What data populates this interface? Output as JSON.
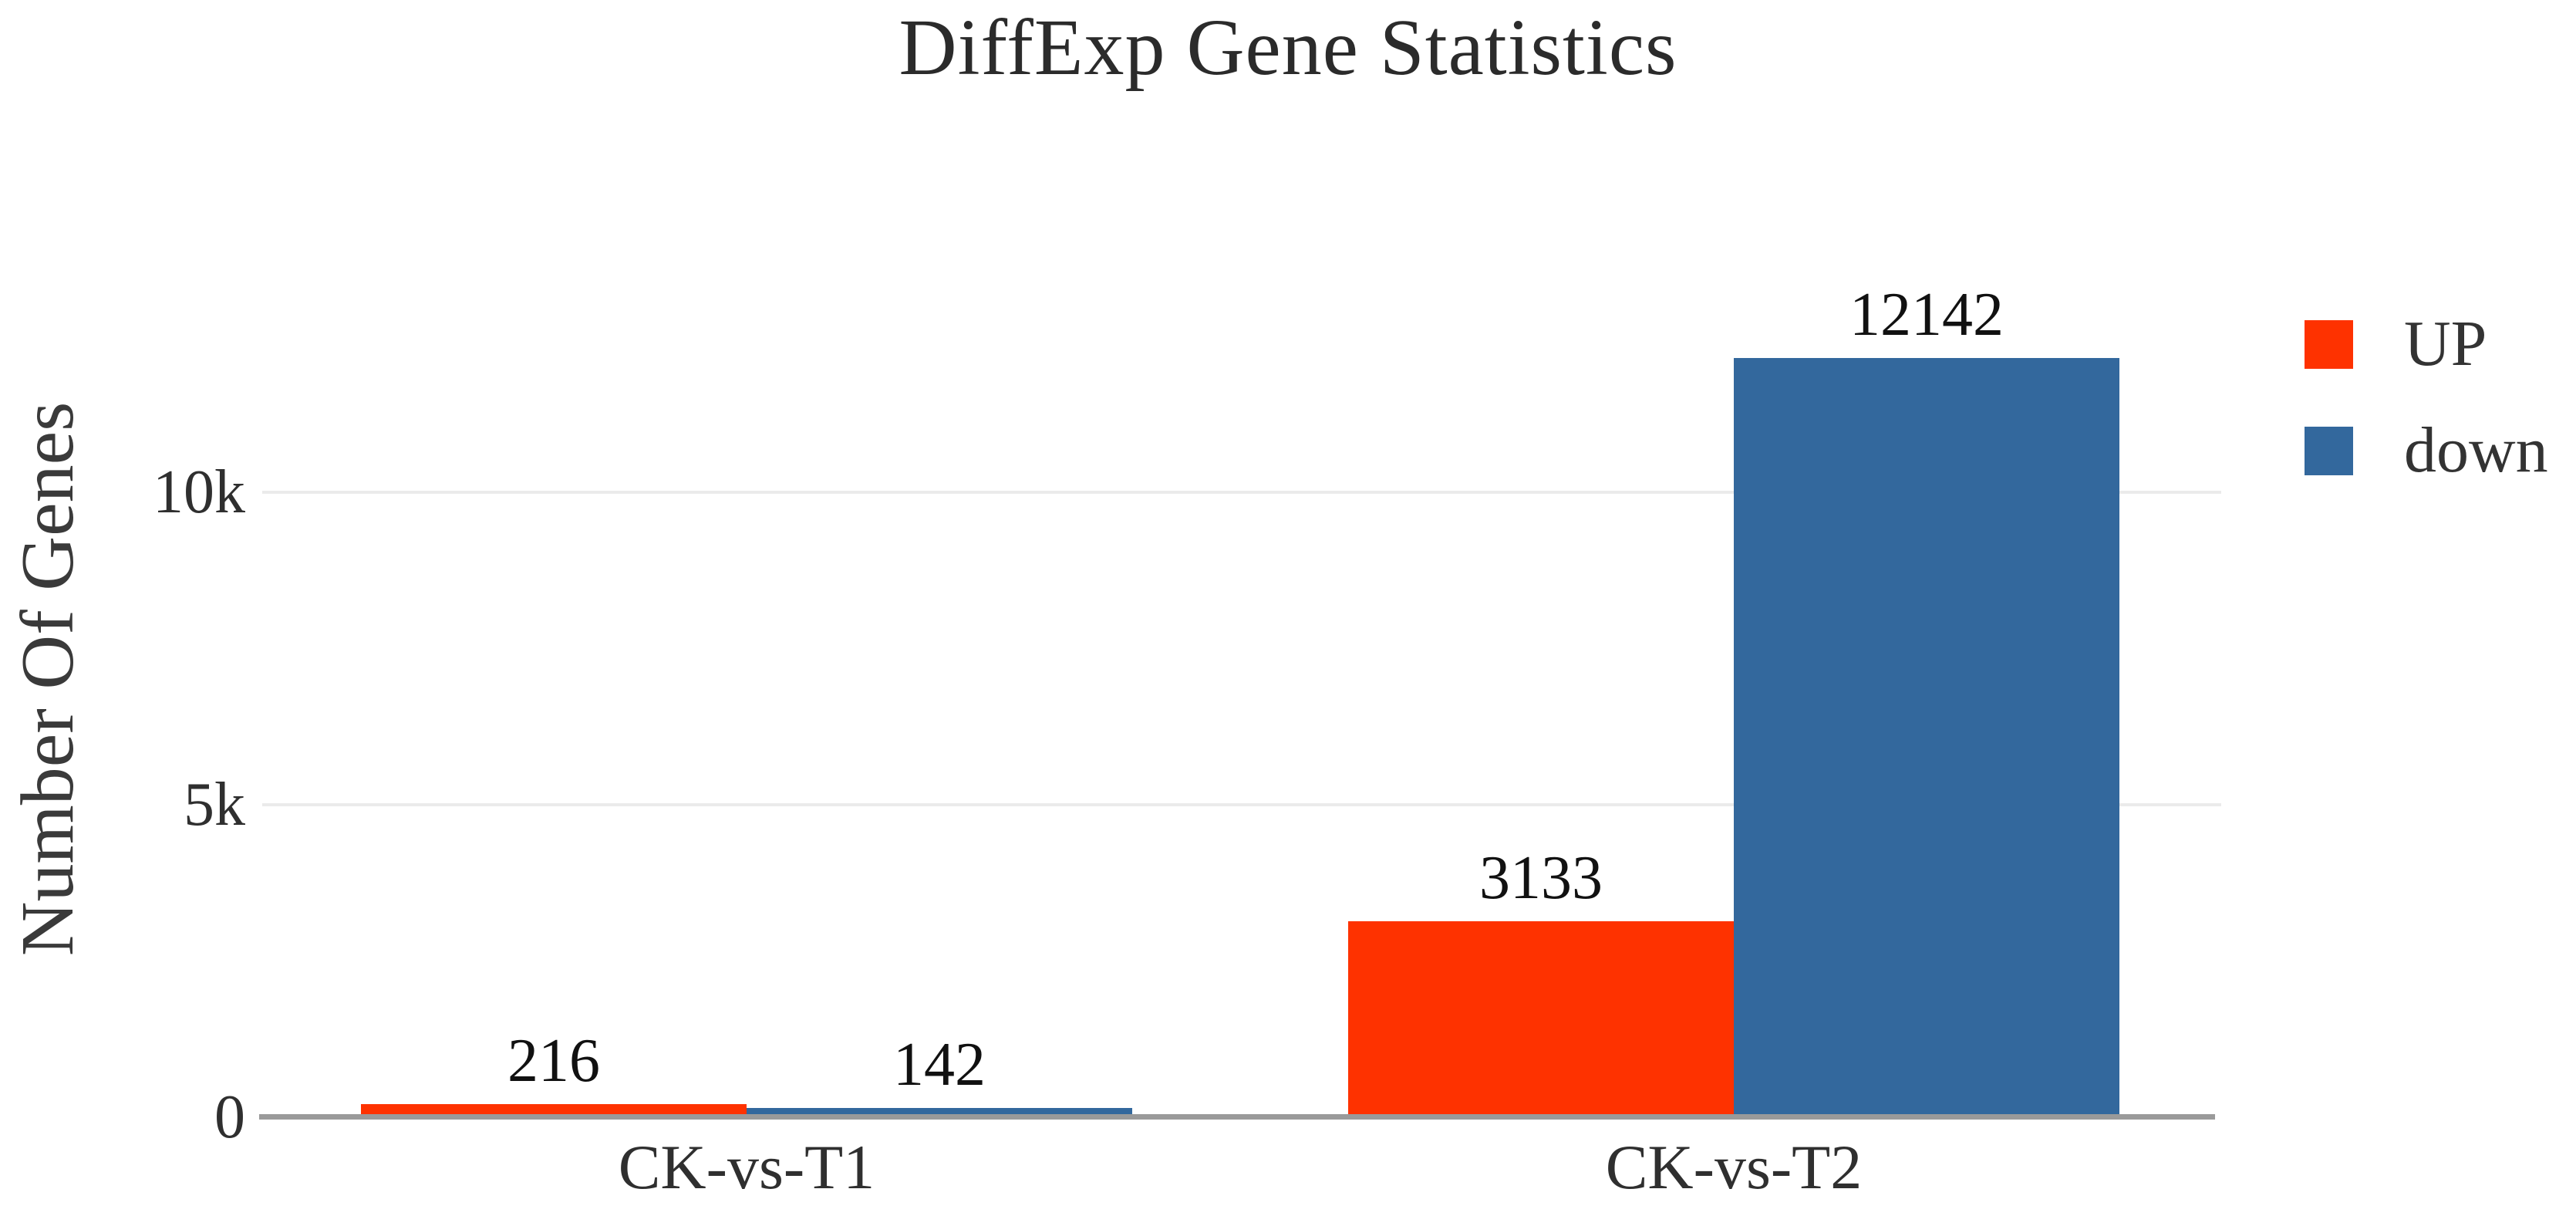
{
  "chart_data": {
    "type": "bar",
    "title": "DiffExp Gene Statistics",
    "xlabel": "",
    "ylabel": "Number Of Genes",
    "categories": [
      "CK-vs-T1",
      "CK-vs-T2"
    ],
    "series": [
      {
        "name": "UP",
        "color": "#FE3200",
        "values": [
          216,
          3133
        ]
      },
      {
        "name": "down",
        "color": "#33689D",
        "values": [
          142,
          12142
        ]
      }
    ],
    "bar_labels": [
      [
        "216",
        "3133"
      ],
      [
        "142",
        "12142"
      ]
    ],
    "ylim": [
      0,
      12500
    ],
    "yticks": [
      {
        "value": 0,
        "label": "0"
      },
      {
        "value": 5000,
        "label": "5k"
      },
      {
        "value": 10000,
        "label": "10k"
      }
    ],
    "grid": "horizontal-light",
    "legend_position": "right-top"
  },
  "style": {
    "grid_color": "#EBEBEB",
    "axis_line_color": "#9A9A9A",
    "text_color": "#2F2F2F",
    "background": "#FFFFFF"
  }
}
